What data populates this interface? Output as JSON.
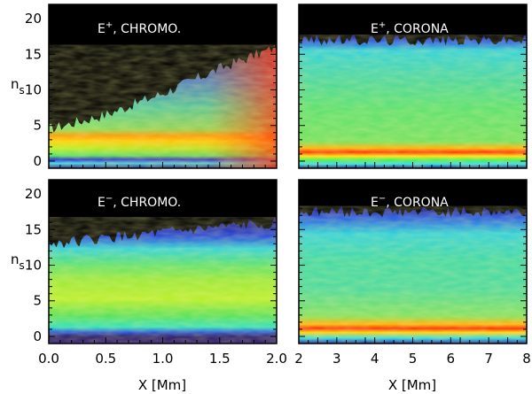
{
  "chart_data": [
    {
      "type": "heatmap",
      "id": "p1",
      "title_sign": "+",
      "title_rest": ", CHROMO.",
      "title_prefix": "E",
      "xlim": [
        0.0,
        2.0
      ],
      "ylim": [
        -1,
        22
      ],
      "ylabel_main": "n",
      "ylabel_sub": "s",
      "y_ticks": [
        "0",
        "5",
        "10",
        "15",
        "20"
      ],
      "y_tick_values": [
        0,
        5,
        10,
        15,
        20
      ],
      "x_ticks": [],
      "xlabel": "",
      "description": "Enhanced red band along top boundary rising from n_s ~4.5 at x=0 to ~16 at x=2.0; blue bands at n_s ~1",
      "boundary_at_x": [
        [
          0.0,
          4.5
        ],
        [
          0.5,
          6.5
        ],
        [
          1.0,
          9.5
        ],
        [
          1.5,
          13.0
        ],
        [
          2.0,
          16.0
        ]
      ]
    },
    {
      "type": "heatmap",
      "id": "p2",
      "title_sign": "+",
      "title_rest": ", CORONA",
      "title_prefix": "E",
      "xlim": [
        2,
        8
      ],
      "ylim": [
        -1,
        22
      ],
      "ylabel_main": "",
      "ylabel_sub": "",
      "y_ticks": [],
      "y_tick_values": [],
      "x_ticks": [],
      "xlabel": "",
      "description": "Flat top boundary at n_s ~17; red band at n_s ~2",
      "boundary_at_x": [
        [
          2,
          17.0
        ],
        [
          8,
          17.0
        ]
      ]
    },
    {
      "type": "heatmap",
      "id": "p3",
      "title_sign": "−",
      "title_rest": ", CHROMO.",
      "title_prefix": "E",
      "xlim": [
        0.0,
        2.0
      ],
      "ylim": [
        -1,
        22
      ],
      "ylabel_main": "n",
      "ylabel_sub": "s",
      "y_ticks": [
        "0",
        "5",
        "10",
        "15",
        "20"
      ],
      "y_tick_values": [
        0,
        5,
        10,
        15,
        20
      ],
      "x_ticks": [
        "0.0",
        "0.5",
        "1.0",
        "1.5",
        "2.0"
      ],
      "x_tick_values": [
        0.0,
        0.5,
        1.0,
        1.5,
        2.0
      ],
      "xlabel": "X [Mm]",
      "description": "Top boundary rising from n_s ~13 to ~16; dark band near n_s ~1",
      "boundary_at_x": [
        [
          0.0,
          13.0
        ],
        [
          2.0,
          16.0
        ]
      ]
    },
    {
      "type": "heatmap",
      "id": "p4",
      "title_sign": "−",
      "title_rest": ", CORONA",
      "title_prefix": "E",
      "xlim": [
        2,
        8
      ],
      "ylim": [
        -1,
        22
      ],
      "ylabel_main": "",
      "ylabel_sub": "",
      "y_ticks": [],
      "y_tick_values": [],
      "x_ticks": [
        "2",
        "3",
        "4",
        "5",
        "6",
        "7",
        "8"
      ],
      "x_tick_values": [
        2,
        3,
        4,
        5,
        6,
        7,
        8
      ],
      "xlabel": "X [Mm]",
      "description": "Top boundary at n_s ~17.5; red band at n_s ~2",
      "boundary_at_x": [
        [
          2,
          17.5
        ],
        [
          8,
          17.5
        ]
      ]
    }
  ],
  "colors": {
    "background_empty": "#000000",
    "frame": "#000000",
    "title_text": "#ffffff"
  }
}
